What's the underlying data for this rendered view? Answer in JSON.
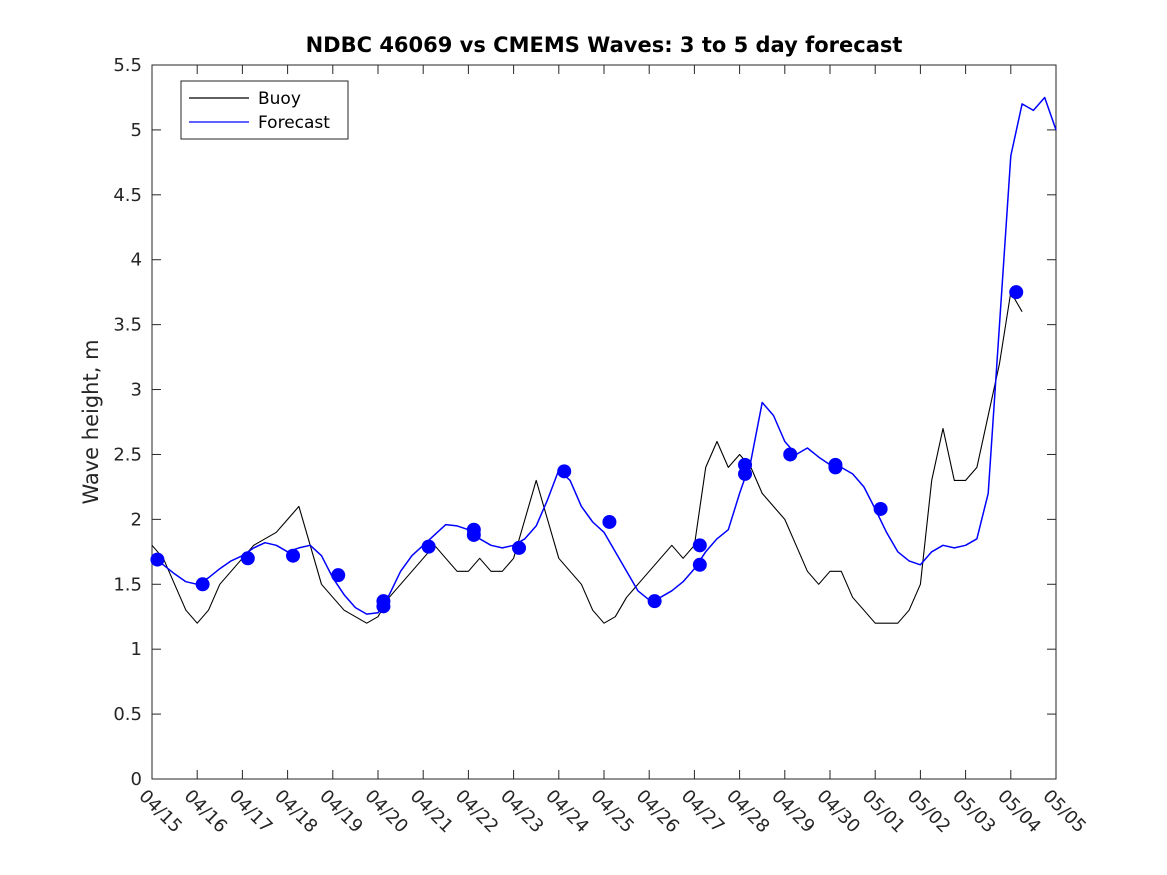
{
  "chart_data": {
    "type": "line",
    "title": "NDBC 46069 vs CMEMS Waves: 3 to 5 day forecast",
    "ylabel": "Wave height, m",
    "xlabel": "",
    "x_tick_labels": [
      "04/15",
      "04/16",
      "04/17",
      "04/18",
      "04/19",
      "04/20",
      "04/21",
      "04/22",
      "04/23",
      "04/24",
      "04/25",
      "04/26",
      "04/27",
      "04/28",
      "04/29",
      "04/30",
      "05/01",
      "05/02",
      "05/03",
      "05/04",
      "05/05"
    ],
    "y_tick_labels": [
      "0",
      "0.5",
      "1",
      "1.5",
      "2",
      "2.5",
      "3",
      "3.5",
      "4",
      "4.5",
      "5",
      "5.5"
    ],
    "xlim": [
      "04/15",
      "05/05"
    ],
    "ylim": [
      0,
      5.5
    ],
    "grid": false,
    "legend_placement": "top-left",
    "series": [
      {
        "name": "Buoy",
        "color": "#000000",
        "x_days": [
          0,
          0.25,
          0.5,
          0.75,
          1,
          1.25,
          1.5,
          1.75,
          2,
          2.25,
          2.5,
          2.75,
          3,
          3.25,
          3.5,
          3.75,
          4,
          4.25,
          4.5,
          4.75,
          5,
          5.25,
          5.5,
          5.75,
          6,
          6.25,
          6.5,
          6.75,
          7,
          7.25,
          7.5,
          7.75,
          8,
          8.25,
          8.5,
          8.75,
          9,
          9.25,
          9.5,
          9.75,
          10,
          10.25,
          10.5,
          10.75,
          11,
          11.25,
          11.5,
          11.75,
          12,
          12.25,
          12.5,
          12.75,
          13,
          13.25,
          13.5,
          13.75,
          14,
          14.25,
          14.5,
          14.75,
          15,
          15.25,
          15.5,
          15.75,
          16,
          16.25,
          16.5,
          16.75,
          17,
          17.25,
          17.5,
          17.75,
          18,
          18.25,
          18.5,
          18.75,
          19,
          19.25
        ],
        "y": [
          1.8,
          1.7,
          1.5,
          1.3,
          1.2,
          1.3,
          1.5,
          1.6,
          1.7,
          1.8,
          1.85,
          1.9,
          2.0,
          2.1,
          1.8,
          1.5,
          1.4,
          1.3,
          1.25,
          1.2,
          1.25,
          1.4,
          1.5,
          1.6,
          1.7,
          1.8,
          1.7,
          1.6,
          1.6,
          1.7,
          1.6,
          1.6,
          1.7,
          2.0,
          2.3,
          2.0,
          1.7,
          1.6,
          1.5,
          1.3,
          1.2,
          1.25,
          1.4,
          1.5,
          1.6,
          1.7,
          1.8,
          1.7,
          1.8,
          2.4,
          2.6,
          2.4,
          2.5,
          2.4,
          2.2,
          2.1,
          2.0,
          1.8,
          1.6,
          1.5,
          1.6,
          1.6,
          1.4,
          1.3,
          1.2,
          1.2,
          1.2,
          1.3,
          1.5,
          2.3,
          2.7,
          2.3,
          2.3,
          2.4,
          2.8,
          3.2,
          3.75,
          3.6
        ]
      },
      {
        "name": "Forecast",
        "color": "#0000ff",
        "x_days": [
          0,
          0.25,
          0.5,
          0.75,
          1,
          1.25,
          1.5,
          1.75,
          2,
          2.25,
          2.5,
          2.75,
          3,
          3.25,
          3.5,
          3.75,
          4,
          4.25,
          4.5,
          4.75,
          5,
          5.25,
          5.5,
          5.75,
          6,
          6.25,
          6.5,
          6.75,
          7,
          7.25,
          7.5,
          7.75,
          8,
          8.25,
          8.5,
          8.75,
          9,
          9.25,
          9.5,
          9.75,
          10,
          10.25,
          10.5,
          10.75,
          11,
          11.25,
          11.5,
          11.75,
          12,
          12.25,
          12.5,
          12.75,
          13,
          13.25,
          13.5,
          13.75,
          14,
          14.25,
          14.5,
          14.75,
          15,
          15.25,
          15.5,
          15.75,
          16,
          16.25,
          16.5,
          16.75,
          17,
          17.25,
          17.5,
          17.75,
          18,
          18.25,
          18.5,
          18.75,
          19,
          19.25,
          19.5,
          19.75,
          20
        ],
        "y": [
          1.7,
          1.65,
          1.58,
          1.52,
          1.5,
          1.55,
          1.62,
          1.68,
          1.72,
          1.78,
          1.82,
          1.8,
          1.75,
          1.78,
          1.8,
          1.72,
          1.55,
          1.42,
          1.32,
          1.27,
          1.28,
          1.42,
          1.6,
          1.72,
          1.8,
          1.88,
          1.96,
          1.95,
          1.92,
          1.85,
          1.8,
          1.78,
          1.8,
          1.85,
          1.95,
          2.15,
          2.38,
          2.3,
          2.1,
          1.98,
          1.9,
          1.75,
          1.6,
          1.45,
          1.38,
          1.4,
          1.45,
          1.52,
          1.62,
          1.75,
          1.85,
          1.92,
          2.2,
          2.45,
          2.9,
          2.8,
          2.6,
          2.5,
          2.55,
          2.48,
          2.42,
          2.4,
          2.35,
          2.25,
          2.08,
          1.9,
          1.75,
          1.68,
          1.65,
          1.75,
          1.8,
          1.78,
          1.8,
          1.85,
          2.2,
          3.5,
          4.8,
          5.2,
          5.15,
          5.25,
          5.0
        ]
      }
    ],
    "markers": {
      "color": "#0000ff",
      "x_days": [
        0.12,
        1.12,
        2.12,
        3.12,
        4.12,
        5.12,
        5.12,
        6.12,
        7.12,
        7.12,
        8.12,
        9.12,
        10.12,
        11.12,
        12.12,
        12.12,
        13.12,
        13.12,
        14.12,
        15.12,
        15.12,
        16.12,
        19.12
      ],
      "y": [
        1.69,
        1.5,
        1.7,
        1.72,
        1.57,
        1.33,
        1.37,
        1.79,
        1.88,
        1.92,
        1.78,
        2.37,
        1.98,
        1.37,
        1.65,
        1.8,
        2.35,
        2.42,
        2.5,
        2.4,
        2.42,
        2.08,
        3.75
      ]
    }
  },
  "legend": {
    "buoy_label": "Buoy",
    "forecast_label": "Forecast"
  }
}
